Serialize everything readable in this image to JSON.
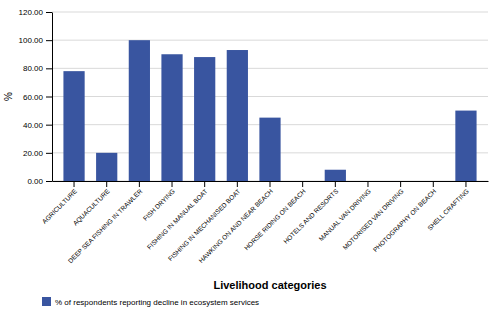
{
  "chart_data": {
    "type": "bar",
    "categories": [
      "AGRICULTURE",
      "AQUACULTURE",
      "DEEP SEA FISHING IN TRAWLER",
      "FISH DRYING",
      "FISHING IN MANUAL BOAT",
      "FISHING IN MECHANISED BOAT",
      "HAWKING ON AND NEAR BEACH",
      "HORSE RIDING ON BEACH",
      "HOTELS AND RESORTS",
      "MANUAL VAN DRIVING",
      "MOTORISED VAN DRIVING",
      "PHOTOGRAPHY ON BEACH",
      "SHELL CRAFTING"
    ],
    "series": [
      {
        "name": "% of respondents reporting decline in ecosystem services",
        "color": "#3955a0",
        "values": [
          78.0,
          20.0,
          100.0,
          90.0,
          88.0,
          93.0,
          45.0,
          0.0,
          8.0,
          0.0,
          0.0,
          0.0,
          50.0
        ]
      }
    ],
    "xlabel": "Livelihood categories",
    "ylabel": "%",
    "ylim": [
      0,
      120
    ],
    "yticks": [
      {
        "value": 0,
        "label": "0.00"
      },
      {
        "value": 20,
        "label": "20.00"
      },
      {
        "value": 40,
        "label": "40.00"
      },
      {
        "value": 60,
        "label": "60.00"
      },
      {
        "value": 80,
        "label": "80.00"
      },
      {
        "value": 100,
        "label": "100.00"
      },
      {
        "value": 120,
        "label": "120.00"
      }
    ],
    "grid": true,
    "legend": "bottom"
  }
}
